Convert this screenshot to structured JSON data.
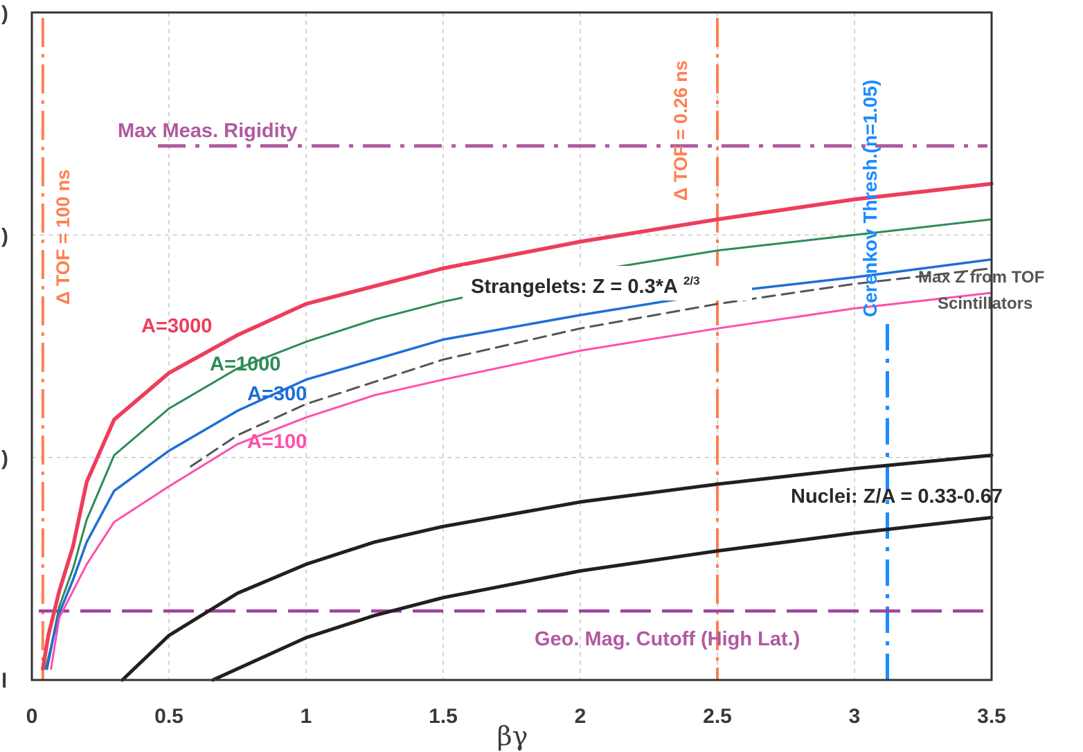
{
  "chart_data": {
    "type": "line",
    "xlabel": "βγ",
    "xlim": [
      0,
      3.5
    ],
    "x_ticks": [
      "0",
      "0.5",
      "1",
      "1.5",
      "2",
      "2.5",
      "3",
      "3.5"
    ],
    "y_ticks_visible": [
      ")",
      ")",
      ")",
      "l"
    ],
    "grid": true,
    "colors": {
      "A=3000": "#ee3d5c",
      "A=1000": "#2e8b57",
      "A=300": "#1e6fd6",
      "A=100": "#ff4fae",
      "strangelet_limit": "#555555",
      "nuclei": "#231f20",
      "tof": "#ff7f50",
      "cerenkov": "#1a8cff",
      "rigidity": "#b05aa0",
      "geomag": "#a040a0"
    },
    "series": [
      {
        "name": "A=3000",
        "x": [
          0.04,
          0.06,
          0.1,
          0.15,
          0.2,
          0.3,
          0.5,
          0.75,
          1,
          1.25,
          1.5,
          2,
          2.5,
          3,
          3.5
        ],
        "y": [
          0.05,
          0.2,
          0.4,
          0.6,
          0.89,
          1.17,
          1.38,
          1.55,
          1.69,
          1.77,
          1.85,
          1.97,
          2.07,
          2.16,
          2.23
        ]
      },
      {
        "name": "A=1000",
        "x": [
          0.05,
          0.07,
          0.1,
          0.15,
          0.2,
          0.3,
          0.5,
          0.75,
          1,
          1.25,
          1.5,
          2,
          2.5,
          3,
          3.5
        ],
        "y": [
          0.05,
          0.15,
          0.33,
          0.5,
          0.72,
          1.01,
          1.22,
          1.4,
          1.52,
          1.62,
          1.7,
          1.83,
          1.93,
          2.0,
          2.07
        ]
      },
      {
        "name": "A=300",
        "x": [
          0.055,
          0.08,
          0.1,
          0.15,
          0.2,
          0.3,
          0.5,
          0.75,
          1,
          1.25,
          1.5,
          2,
          2.5,
          3,
          3.5
        ],
        "y": [
          0.05,
          0.2,
          0.3,
          0.45,
          0.62,
          0.85,
          1.03,
          1.21,
          1.35,
          1.44,
          1.53,
          1.64,
          1.74,
          1.81,
          1.89
        ]
      },
      {
        "name": "A=100",
        "x": [
          0.07,
          0.1,
          0.15,
          0.2,
          0.3,
          0.5,
          0.75,
          1,
          1.25,
          1.5,
          2,
          2.5,
          3,
          3.5
        ],
        "y": [
          0.05,
          0.28,
          0.4,
          0.52,
          0.71,
          0.87,
          1.06,
          1.18,
          1.28,
          1.35,
          1.48,
          1.58,
          1.67,
          1.74
        ]
      },
      {
        "name": "Strangelets: Z = 0.3*A 2/3",
        "x": [
          0.58,
          0.75,
          1,
          1.25,
          1.5,
          2,
          2.5,
          3,
          3.5
        ],
        "y": [
          0.96,
          1.1,
          1.24,
          1.34,
          1.44,
          1.58,
          1.69,
          1.78,
          1.85
        ]
      },
      {
        "name": "Nuclei: Z/A = 0.67",
        "x": [
          0.33,
          0.5,
          0.75,
          1,
          1.25,
          1.5,
          2,
          2.5,
          3,
          3.5
        ],
        "y": [
          0,
          0.2,
          0.39,
          0.52,
          0.62,
          0.69,
          0.8,
          0.88,
          0.95,
          1.01
        ]
      },
      {
        "name": "Nuclei: Z/A = 0.33",
        "x": [
          0.66,
          1,
          1.25,
          1.5,
          2,
          2.5,
          3,
          3.5
        ],
        "y": [
          0,
          0.19,
          0.29,
          0.37,
          0.49,
          0.58,
          0.66,
          0.73
        ]
      }
    ],
    "annotations": {
      "a3000": "A=3000",
      "a1000": "A=1000",
      "a300": "A=300",
      "a100": "A=100",
      "strangelets": "Strangelets: Z = 0.3*A",
      "strangelets_exp": "2/3",
      "maxz_line1": "Max Z from TOF",
      "maxz_line2": "Scintillators",
      "nuclei": "Nuclei: Z/A = 0.33-0.67",
      "max_rigidity": "Max Meas. Rigidity",
      "geomag": "Geo. Mag. Cutoff (High Lat.)",
      "tof100": "Δ TOF = 100 ns",
      "tof026": "Δ TOF = 0.26 ns",
      "cerenkov": "Cerenkov Thresh.(n=1.05)"
    },
    "reference_lines": {
      "tof100_x": 0.04,
      "tof026_x": 2.5,
      "cerenkov_x": 3.12,
      "max_rigidity_y": 2.4,
      "geomag_y": 0.31
    }
  }
}
